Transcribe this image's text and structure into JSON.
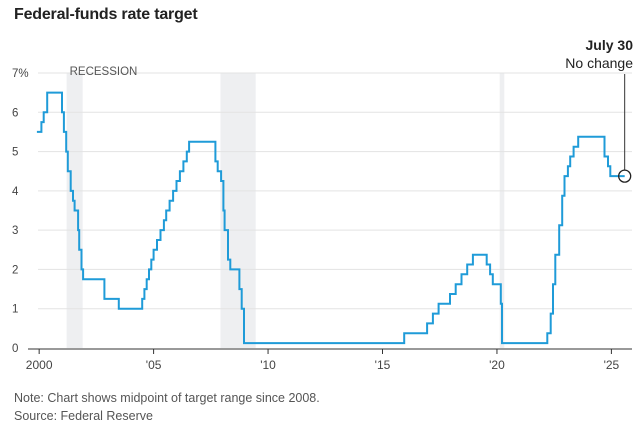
{
  "chart_data": {
    "type": "line",
    "title": "Federal-funds rate target",
    "xlabel": "",
    "ylabel": "",
    "ylim": [
      0,
      7
    ],
    "xlim": [
      1999.6,
      2025.9
    ],
    "y_ticks": [
      "0",
      "1",
      "2",
      "3",
      "4",
      "5",
      "6",
      "7%"
    ],
    "x_ticks": [
      {
        "x": 2000,
        "label": "2000"
      },
      {
        "x": 2005,
        "label": "'05"
      },
      {
        "x": 2010,
        "label": "'10"
      },
      {
        "x": 2015,
        "label": "'15"
      },
      {
        "x": 2020,
        "label": "'20"
      },
      {
        "x": 2025,
        "label": "'25"
      }
    ],
    "grid": true,
    "colors": {
      "line": "#1f9bd8",
      "recession": "#eeeff1",
      "grid": "#e3e3e3",
      "axis": "#333333"
    },
    "recession_label": "RECESSION",
    "recessions": [
      [
        2001.2,
        2001.9
      ],
      [
        2007.92,
        2009.46
      ],
      [
        2020.12,
        2020.32
      ]
    ],
    "annotation": {
      "title": "July 30",
      "text": "No change",
      "x": 2025.58,
      "y": 4.375
    },
    "series": [
      {
        "name": "",
        "step": true,
        "points": [
          [
            1999.9,
            5.5
          ],
          [
            2000.1,
            5.75
          ],
          [
            2000.2,
            6.0
          ],
          [
            2000.35,
            6.5
          ],
          [
            2001.0,
            6.0
          ],
          [
            2001.08,
            5.5
          ],
          [
            2001.18,
            5.0
          ],
          [
            2001.25,
            4.5
          ],
          [
            2001.38,
            4.0
          ],
          [
            2001.48,
            3.75
          ],
          [
            2001.55,
            3.5
          ],
          [
            2001.7,
            3.0
          ],
          [
            2001.75,
            2.5
          ],
          [
            2001.85,
            2.0
          ],
          [
            2001.92,
            1.75
          ],
          [
            2002.85,
            1.25
          ],
          [
            2003.48,
            1.0
          ],
          [
            2004.5,
            1.25
          ],
          [
            2004.6,
            1.5
          ],
          [
            2004.7,
            1.75
          ],
          [
            2004.8,
            2.0
          ],
          [
            2004.9,
            2.25
          ],
          [
            2005.0,
            2.5
          ],
          [
            2005.15,
            2.75
          ],
          [
            2005.3,
            3.0
          ],
          [
            2005.45,
            3.25
          ],
          [
            2005.55,
            3.5
          ],
          [
            2005.7,
            3.75
          ],
          [
            2005.85,
            4.0
          ],
          [
            2006.0,
            4.25
          ],
          [
            2006.15,
            4.5
          ],
          [
            2006.3,
            4.75
          ],
          [
            2006.45,
            5.0
          ],
          [
            2006.55,
            5.25
          ],
          [
            2007.7,
            4.75
          ],
          [
            2007.8,
            4.5
          ],
          [
            2007.95,
            4.25
          ],
          [
            2008.05,
            3.5
          ],
          [
            2008.1,
            3.0
          ],
          [
            2008.25,
            2.25
          ],
          [
            2008.35,
            2.0
          ],
          [
            2008.75,
            1.5
          ],
          [
            2008.85,
            1.0
          ],
          [
            2008.95,
            0.125
          ],
          [
            2015.95,
            0.375
          ],
          [
            2016.95,
            0.625
          ],
          [
            2017.2,
            0.875
          ],
          [
            2017.45,
            1.125
          ],
          [
            2017.95,
            1.375
          ],
          [
            2018.2,
            1.625
          ],
          [
            2018.45,
            1.875
          ],
          [
            2018.7,
            2.125
          ],
          [
            2018.95,
            2.375
          ],
          [
            2019.55,
            2.125
          ],
          [
            2019.7,
            1.875
          ],
          [
            2019.82,
            1.625
          ],
          [
            2020.17,
            1.125
          ],
          [
            2020.22,
            0.125
          ],
          [
            2022.2,
            0.375
          ],
          [
            2022.35,
            0.875
          ],
          [
            2022.45,
            1.625
          ],
          [
            2022.55,
            2.375
          ],
          [
            2022.72,
            3.125
          ],
          [
            2022.85,
            3.875
          ],
          [
            2022.95,
            4.375
          ],
          [
            2023.1,
            4.625
          ],
          [
            2023.2,
            4.875
          ],
          [
            2023.35,
            5.125
          ],
          [
            2023.55,
            5.375
          ],
          [
            2024.7,
            4.875
          ],
          [
            2024.85,
            4.625
          ],
          [
            2024.95,
            4.375
          ],
          [
            2025.58,
            4.375
          ]
        ]
      }
    ]
  },
  "footer": {
    "note": "Note: Chart shows midpoint of target range since 2008.",
    "source": "Source: Federal Reserve"
  }
}
